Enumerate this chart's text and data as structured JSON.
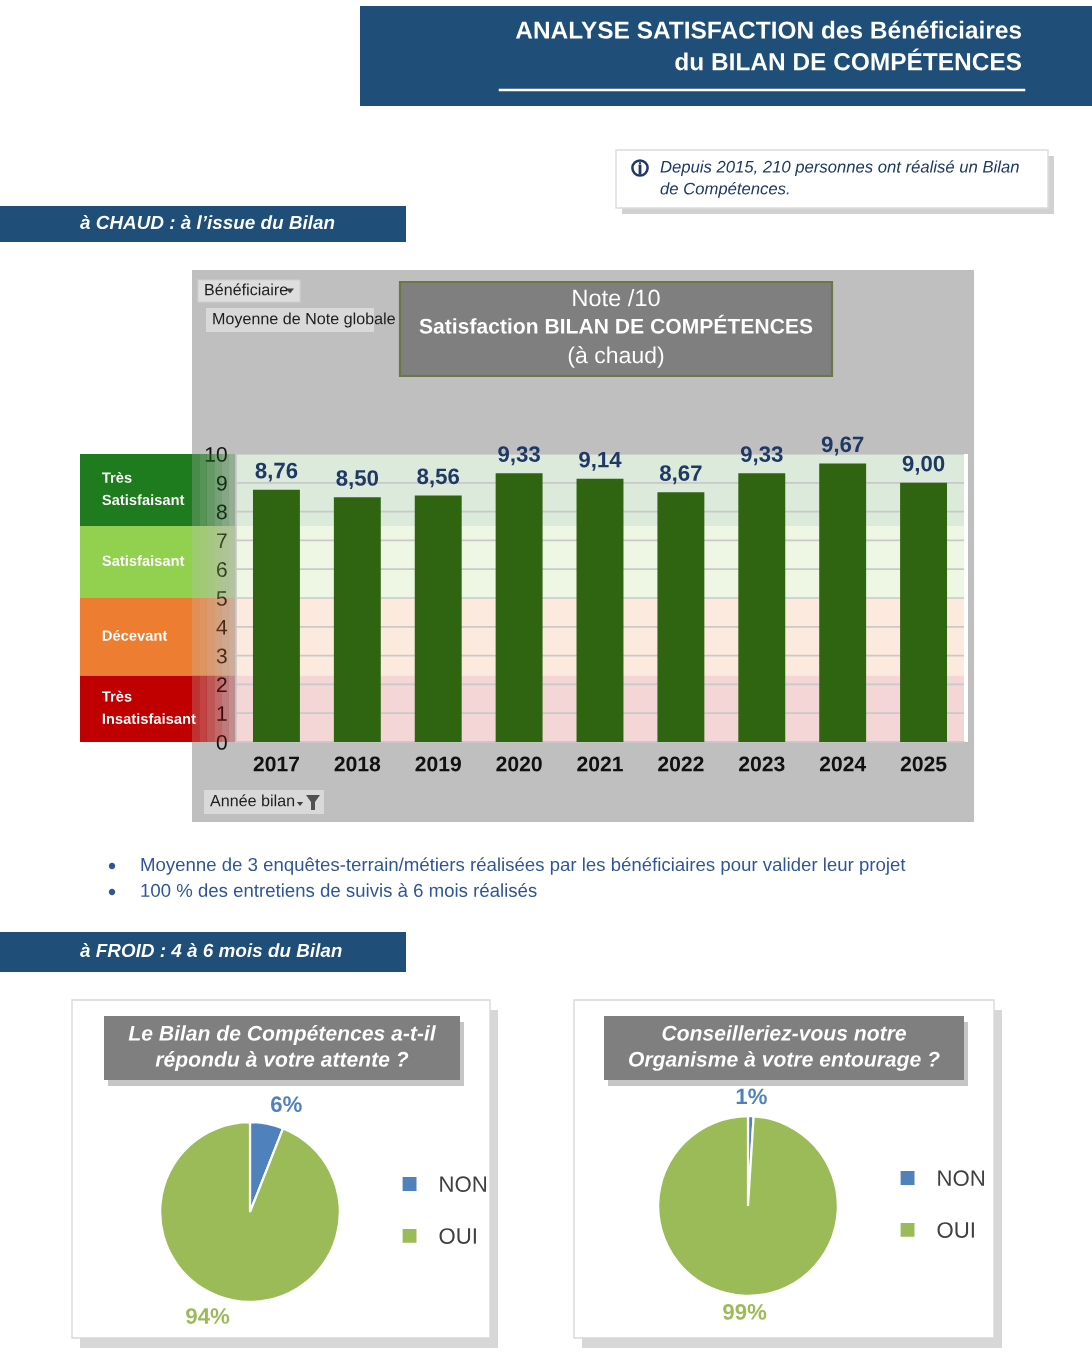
{
  "chart_data": [
    {
      "type": "bar",
      "subtitle": "Note /10",
      "title": "Satisfaction BILAN DE COMPÉTENCES",
      "xlabel": "Année bilan",
      "ylabel": "Moyenne de Note globale",
      "categories": [
        "2017",
        "2018",
        "2019",
        "2020",
        "2021",
        "2022",
        "2023",
        "2024",
        "2025"
      ],
      "values": [
        8.76,
        8.5,
        8.56,
        9.33,
        9.14,
        8.67,
        9.33,
        9.67,
        9.0
      ],
      "value_labels": [
        "8,76",
        "8,50",
        "8,56",
        "9,33",
        "9,14",
        "8,67",
        "9,33",
        "9,67",
        "9,00"
      ],
      "color": "#2f6410",
      "ylim": [
        0,
        10
      ],
      "yticks": [
        0,
        1,
        2,
        3,
        4,
        5,
        6,
        7,
        8,
        9,
        10
      ],
      "grid": "y",
      "bands": [
        {
          "axis": "y",
          "from": 7.5,
          "to": 10,
          "label": "Très\nSatisfaisant",
          "color": "#1e7b1e"
        },
        {
          "axis": "y",
          "from": 5,
          "to": 7.5,
          "label": "Satisfaisant",
          "color": "#92d050"
        },
        {
          "axis": "y",
          "from": 2.3,
          "to": 5,
          "label": "Décevant",
          "color": "#ed7d31"
        },
        {
          "axis": "y",
          "from": 0,
          "to": 2.3,
          "label": "Très\nInsatisfaisant",
          "color": "#c00000"
        }
      ],
      "annotations": [
        "ANALYSE SATISFACTION des Bénéficiaires\ndu BILAN DE COMPÉTENCES",
        "Depuis 2015, 210 personnes ont réalisé un Bilan\nde Compétences.",
        "à CHAUD : à l’issue du Bilan",
        "Bénéficiaire",
        "(à chaud)",
        "Moyenne de 3 enquêtes-terrain/métiers réalisées par les bénéficiaires pour valider leur projet",
        "100 % des entretiens de suivis à 6 mois réalisés"
      ]
    },
    {
      "type": "pie",
      "title": "Le Bilan de Compétences a-t-il\nrépondu à votre attente ?",
      "categories": [
        "NON",
        "OUI"
      ],
      "values": [
        6,
        94
      ],
      "value_labels": [
        "6%",
        "94%"
      ],
      "colors": [
        "#4f81bd",
        "#9bbb59"
      ],
      "legend": "right",
      "annotations": [
        "à FROID : 4 à 6 mois du Bilan"
      ]
    },
    {
      "type": "pie",
      "title": "Conseilleriez-vous notre\nOrganisme à votre entourage ?",
      "categories": [
        "NON",
        "OUI"
      ],
      "values": [
        1,
        99
      ],
      "value_labels": [
        "1%",
        "99%"
      ],
      "colors": [
        "#4f81bd",
        "#9bbb59"
      ],
      "legend": "right"
    }
  ]
}
